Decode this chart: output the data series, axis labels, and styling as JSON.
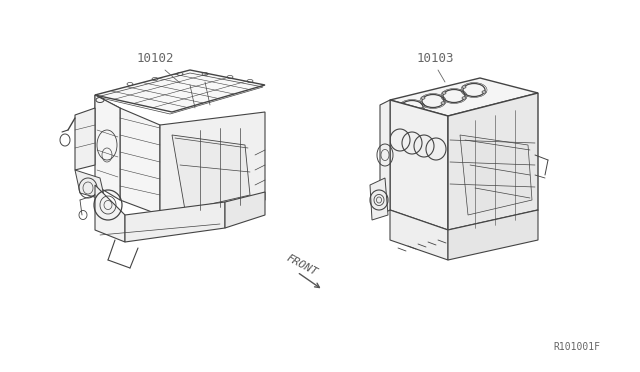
{
  "fig_width": 6.4,
  "fig_height": 3.72,
  "dpi": 100,
  "label_10102": "10102",
  "label_10103": "10103",
  "label_front": "FRONT",
  "ref_code": "R101001F",
  "text_color": "#666666",
  "line_color": "#444444",
  "bg_color": "#ffffff"
}
